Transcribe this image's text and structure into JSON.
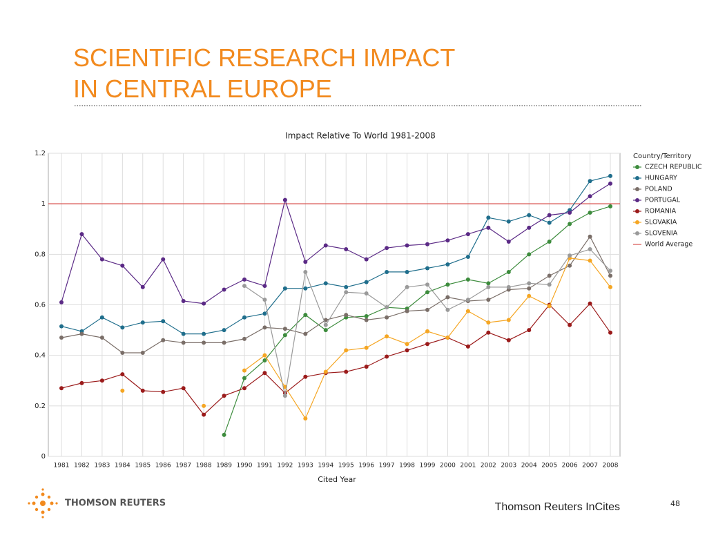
{
  "slide": {
    "title_lines": [
      "SCIENTIFIC RESEARCH IMPACT",
      "IN CENTRAL EUROPE"
    ],
    "logo_text": "THOMSON REUTERS",
    "footer": "Thomson Reuters InCites",
    "page_number": "48"
  },
  "chart_data": {
    "type": "line",
    "title": "Impact Relative To World 1981-2008",
    "x_label": "Cited Year",
    "legend_title": "Country/Territory",
    "legend": "right",
    "categories": [
      "1981",
      "1982",
      "1983",
      "1984",
      "1985",
      "1986",
      "1987",
      "1988",
      "1989",
      "1990",
      "1991",
      "1992",
      "1993",
      "1994",
      "1995",
      "1996",
      "1997",
      "1998",
      "1999",
      "2000",
      "2001",
      "2002",
      "2003",
      "2004",
      "2005",
      "2006",
      "2007",
      "2008"
    ],
    "ylim": [
      0,
      1.2
    ],
    "yticks": [
      0,
      0.2,
      0.4,
      0.6,
      0.8,
      1,
      1.2
    ],
    "grid": true,
    "series": [
      {
        "name": "CZECH REPUBLIC",
        "color": "#3d8c3d",
        "values": [
          null,
          null,
          null,
          null,
          null,
          null,
          null,
          null,
          0.085,
          0.31,
          0.38,
          0.48,
          0.56,
          0.5,
          0.55,
          0.555,
          0.59,
          0.585,
          0.65,
          0.68,
          0.7,
          0.685,
          0.73,
          0.8,
          0.85,
          0.92,
          0.965,
          0.99
        ]
      },
      {
        "name": "HUNGARY",
        "color": "#1f6e8c",
        "values": [
          0.515,
          0.495,
          0.55,
          0.51,
          0.53,
          0.535,
          0.485,
          0.485,
          0.5,
          0.55,
          0.565,
          0.665,
          0.665,
          0.685,
          0.67,
          0.69,
          0.73,
          0.73,
          0.745,
          0.76,
          0.79,
          0.945,
          0.93,
          0.955,
          0.925,
          0.975,
          1.09,
          1.11
        ]
      },
      {
        "name": "POLAND",
        "color": "#7a6e68",
        "values": [
          0.47,
          0.485,
          0.47,
          0.41,
          0.41,
          0.46,
          0.45,
          0.45,
          0.45,
          0.465,
          0.51,
          0.505,
          0.485,
          0.54,
          0.56,
          0.54,
          0.55,
          0.575,
          0.58,
          0.63,
          0.615,
          0.62,
          0.66,
          0.665,
          0.715,
          0.755,
          0.87,
          0.715
        ]
      },
      {
        "name": "PORTUGAL",
        "color": "#5b2a86",
        "values": [
          0.61,
          0.88,
          0.78,
          0.755,
          0.67,
          0.78,
          0.615,
          0.605,
          0.66,
          0.7,
          0.675,
          1.015,
          0.77,
          0.835,
          0.82,
          0.78,
          0.825,
          0.835,
          0.84,
          0.855,
          0.88,
          0.905,
          0.85,
          0.905,
          0.955,
          0.965,
          1.03,
          1.08
        ]
      },
      {
        "name": "ROMANIA",
        "color": "#9b1b1b",
        "values": [
          0.27,
          0.29,
          0.3,
          0.325,
          0.26,
          0.255,
          0.27,
          0.165,
          0.24,
          0.27,
          0.33,
          0.25,
          0.315,
          0.33,
          0.335,
          0.355,
          0.395,
          0.42,
          0.445,
          0.47,
          0.435,
          0.49,
          0.46,
          0.5,
          0.6,
          0.52,
          0.605,
          0.49
        ]
      },
      {
        "name": "SLOVAKIA",
        "color": "#f5a623",
        "values": [
          null,
          null,
          null,
          0.26,
          null,
          null,
          null,
          0.2,
          null,
          0.34,
          0.4,
          0.275,
          0.15,
          0.335,
          0.42,
          0.43,
          0.475,
          0.445,
          0.495,
          0.47,
          0.575,
          0.53,
          0.54,
          0.635,
          0.595,
          0.785,
          0.775,
          0.67
        ]
      },
      {
        "name": "SLOVENIA",
        "color": "#9a9a9a",
        "values": [
          null,
          null,
          null,
          null,
          null,
          null,
          null,
          null,
          null,
          0.675,
          0.62,
          0.24,
          0.73,
          0.52,
          0.65,
          0.645,
          0.59,
          0.67,
          0.68,
          0.58,
          0.62,
          0.67,
          0.67,
          0.685,
          0.68,
          0.795,
          0.82,
          0.735
        ]
      }
    ],
    "reference_lines": [
      {
        "name": "World Average",
        "value": 1,
        "color": "#d9534f"
      }
    ]
  }
}
